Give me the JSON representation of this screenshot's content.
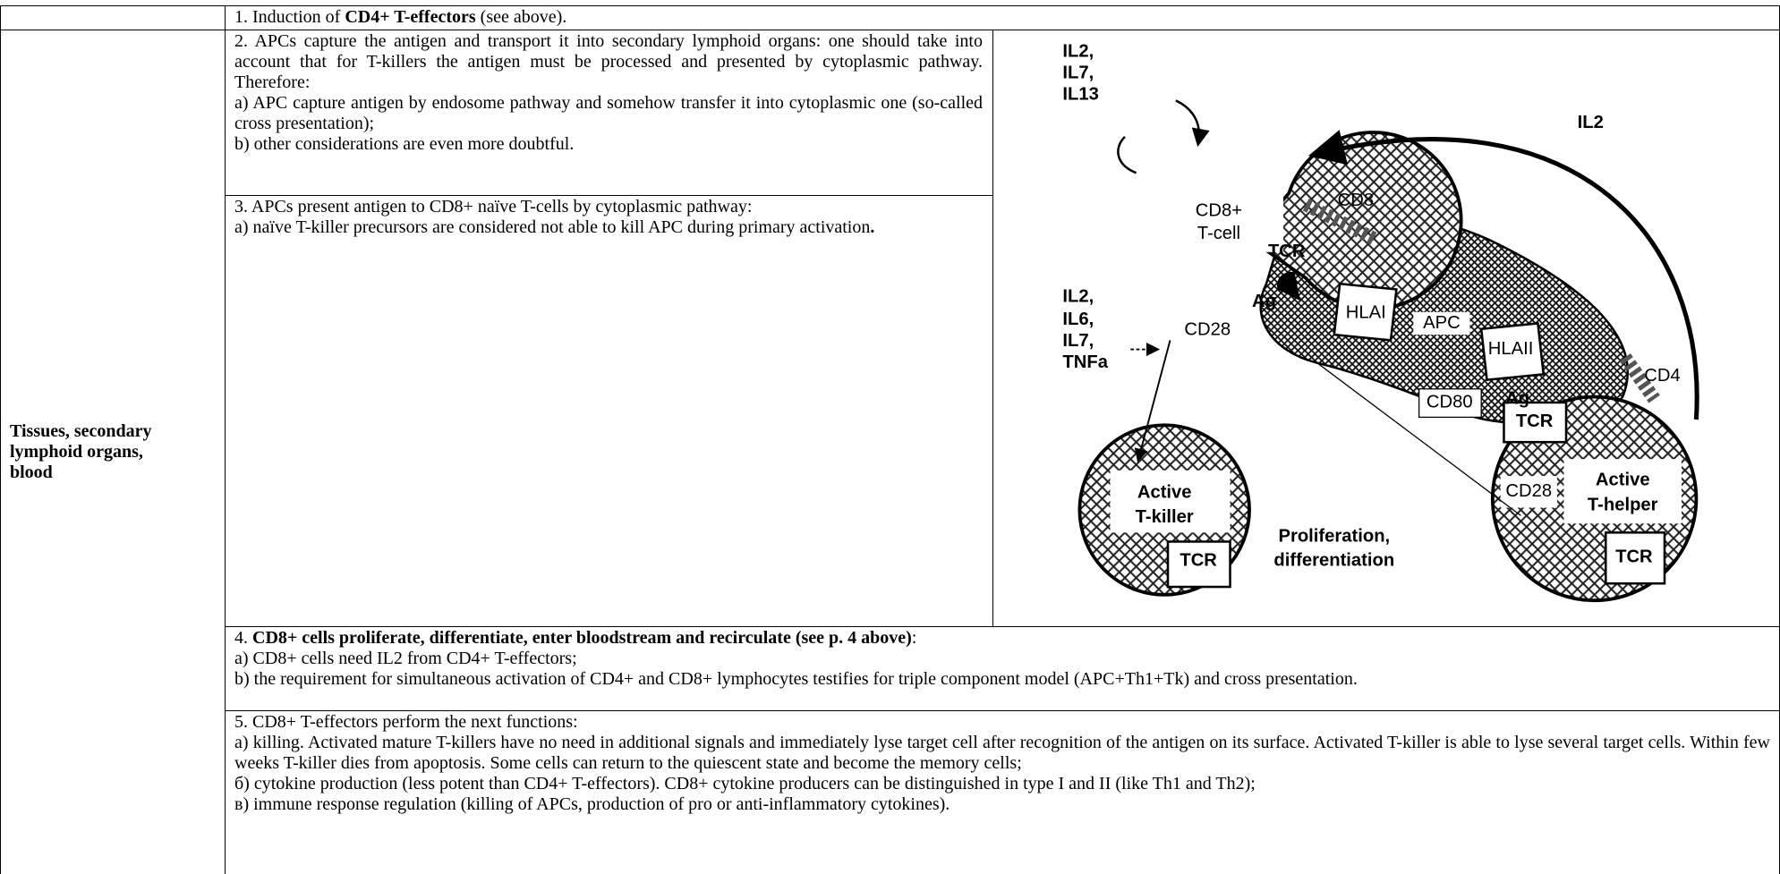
{
  "row1": [
    "1. Induction of ",
    "CD4+ T-effectors",
    " (see above)."
  ],
  "side_label": "Tissues, secondary lymphoid organs, blood",
  "steps": [
    {
      "paragraphs": [
        "2. APCs capture the antigen and transport it into secondary lymphoid organs: one should take into account that for T-killers the antigen must be processed and presented by cytoplasmic pathway. Therefore:",
        "a) APC  capture antigen by endosome pathway and somehow transfer it into cytoplasmic one (so-called cross presentation);",
        "b) other considerations are even more doubtful."
      ]
    },
    {
      "paragraphs": [
        "3. APCs present antigen to CD8+ naïve T-cells by cytoplasmic pathway:",
        [
          "a) naïve T-killer precursors are considered not able to kill APC during primary activation",
          "."
        ]
      ]
    },
    {
      "paragraphs": [
        [
          "4. ",
          "CD8+ cells proliferate, differentiate, enter bloodstream and recirculate (see p. 4 above)",
          ":"
        ],
        "a) CD8+ cells need IL2 from CD4+ T-effectors;",
        "b) the requirement for simultaneous activation of CD4+ and CD8+ lymphocytes testifies for triple component model (APC+Th1+Tk) and cross presentation."
      ]
    },
    {
      "paragraphs": [
        "5. CD8+ T-effectors perform the next functions:",
        "a) killing. Activated mature T-killers have no need in additional signals and immediately lyse target cell after recognition of the antigen on its surface. Activated T-killer is able to lyse several target cells. Within few weeks T-killer dies from apoptosis. Some cells can return to the quiescent state and become the memory cells;",
        "б) cytokine production (less potent than CD4+ T-effectors). CD8+ cytokine producers can be distinguished in type I and II (like Th1 and Th2);",
        "в) immune response regulation (killing of APCs, production of pro or anti-inflammatory cytokines)."
      ]
    }
  ],
  "diagram": {
    "labels": [
      "IL2,",
      "IL7,",
      "IL13",
      "IL2",
      "CD8+",
      "T-cell",
      "CD8",
      "TCR",
      "Ag",
      "HLAI",
      "APC",
      "HLAII",
      "CD4",
      "IL2,",
      "IL6,",
      "IL7,",
      "TNFa",
      "CD28",
      "CD80",
      "Ag",
      "TCR",
      "CD28",
      "Active",
      "T-helper",
      "TCR",
      "Active",
      "T-killer",
      "TCR",
      "Proliferation,",
      "differentiation"
    ]
  }
}
